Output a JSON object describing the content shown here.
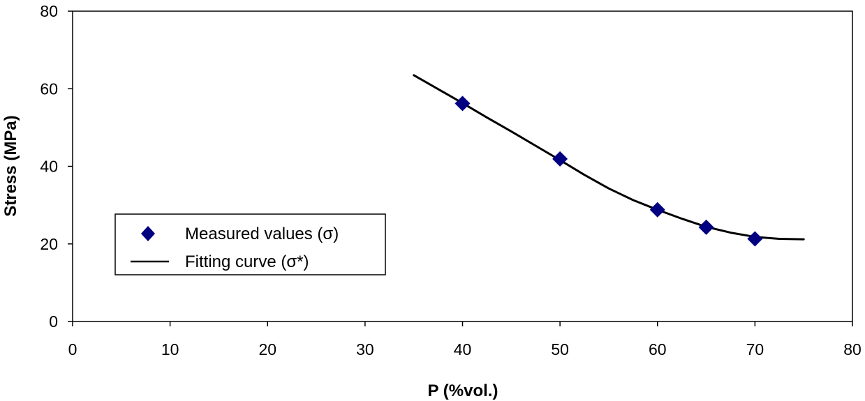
{
  "chart_data": {
    "type": "scatter",
    "title": "",
    "xlabel": "P (%vol.)",
    "ylabel": "Stress (MPa)",
    "xlim": [
      0,
      80
    ],
    "ylim": [
      0,
      80
    ],
    "xticks": [
      0,
      10,
      20,
      30,
      40,
      50,
      60,
      70,
      80
    ],
    "yticks": [
      0,
      20,
      40,
      60,
      80
    ],
    "grid": false,
    "legend_position": "left-middle",
    "series": [
      {
        "name": "Measured values (σ)",
        "kind": "markers",
        "marker": "diamond",
        "color": "#000080",
        "x": [
          40,
          50,
          60,
          65,
          70
        ],
        "y": [
          56.2,
          41.9,
          28.8,
          24.3,
          21.3
        ]
      },
      {
        "name": "Fitting curve (σ*)",
        "kind": "line",
        "color": "#000000",
        "x": [
          35,
          37.5,
          40,
          42.5,
          45,
          47.5,
          50,
          52.5,
          55,
          57.5,
          60,
          62.5,
          65,
          67.5,
          70,
          72.5,
          75
        ],
        "y": [
          63.5,
          59.9,
          56.3,
          52.6,
          49.0,
          45.3,
          41.6,
          37.8,
          34.3,
          31.3,
          28.8,
          26.5,
          24.4,
          22.9,
          21.8,
          21.3,
          21.2
        ]
      }
    ]
  }
}
